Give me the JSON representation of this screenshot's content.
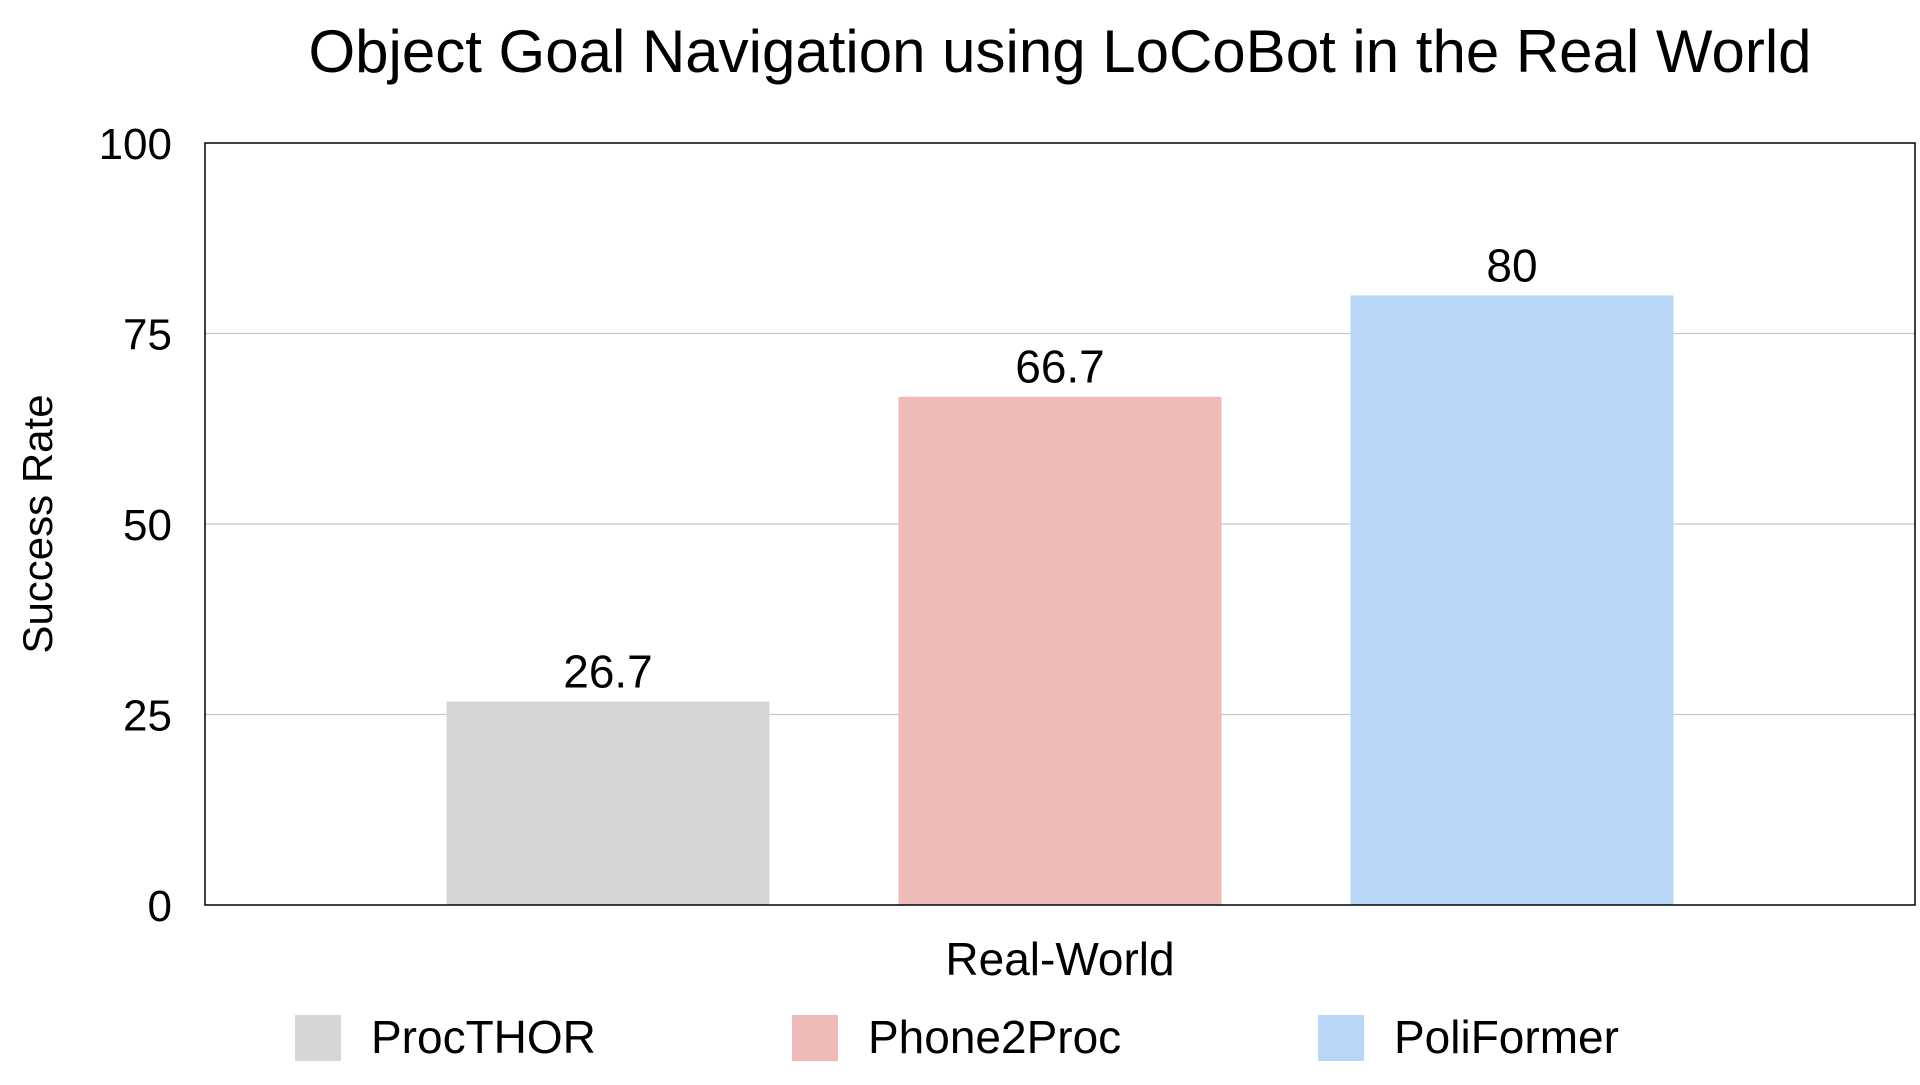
{
  "chart_data": {
    "type": "bar",
    "title": "Object Goal Navigation using LoCoBot in the Real World",
    "xlabel": "Real-World",
    "ylabel": "Success Rate",
    "categories": [
      "Real-World"
    ],
    "series": [
      {
        "name": "ProcTHOR",
        "values": [
          26.7
        ],
        "color": "#d6d6d6"
      },
      {
        "name": "Phone2Proc",
        "values": [
          66.7
        ],
        "color": "#efbbb8"
      },
      {
        "name": "PoliFormer",
        "values": [
          80
        ],
        "color": "#b9d7f9"
      }
    ],
    "ylim": [
      0,
      100
    ],
    "yticks": [
      0,
      25,
      50,
      75,
      100
    ],
    "grid": true,
    "legend_position": "bottom"
  }
}
